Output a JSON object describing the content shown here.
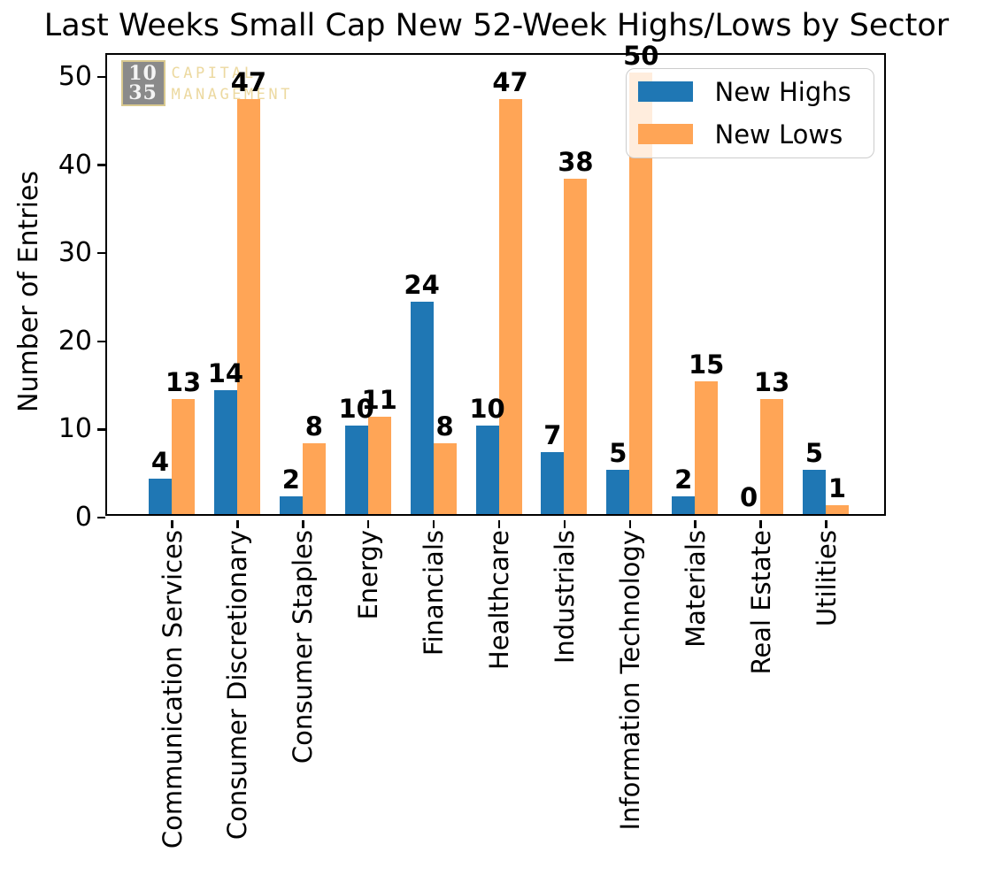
{
  "figure": {
    "title": "Last Weeks Small Cap New 52-Week Highs/Lows by Sector"
  },
  "watermark": {
    "logo_line1": "10",
    "logo_line2": "35",
    "name_line1": "CAPITAL",
    "name_line2": "MANAGEMENT",
    "box_color": "#8a8a8a",
    "accent_color": "#ecd9a0"
  },
  "chart_data": {
    "type": "bar",
    "title": "Last Weeks Small Cap New 52-Week Highs/Lows by Sector",
    "categories": [
      "Communication Services",
      "Consumer Discretionary",
      "Consumer Staples",
      "Energy",
      "Financials",
      "Healthcare",
      "Industrials",
      "Information Technology",
      "Materials",
      "Real Estate",
      "Utilities"
    ],
    "series": [
      {
        "name": "New Highs",
        "color": "#1f77b4",
        "values": [
          4,
          14,
          2,
          10,
          24,
          10,
          7,
          5,
          2,
          0,
          5
        ]
      },
      {
        "name": "New Lows",
        "color": "#ffa556",
        "values": [
          13,
          47,
          8,
          11,
          8,
          47,
          38,
          50,
          15,
          13,
          1
        ]
      }
    ],
    "xlabel": "",
    "ylabel": "Number of Entries",
    "yticks": [
      0,
      10,
      20,
      30,
      40,
      50
    ],
    "ylim": [
      0,
      52.5
    ],
    "grid": false,
    "bar_value_labels": true,
    "legend_position": "upper right",
    "x_tick_rotation": 90
  }
}
